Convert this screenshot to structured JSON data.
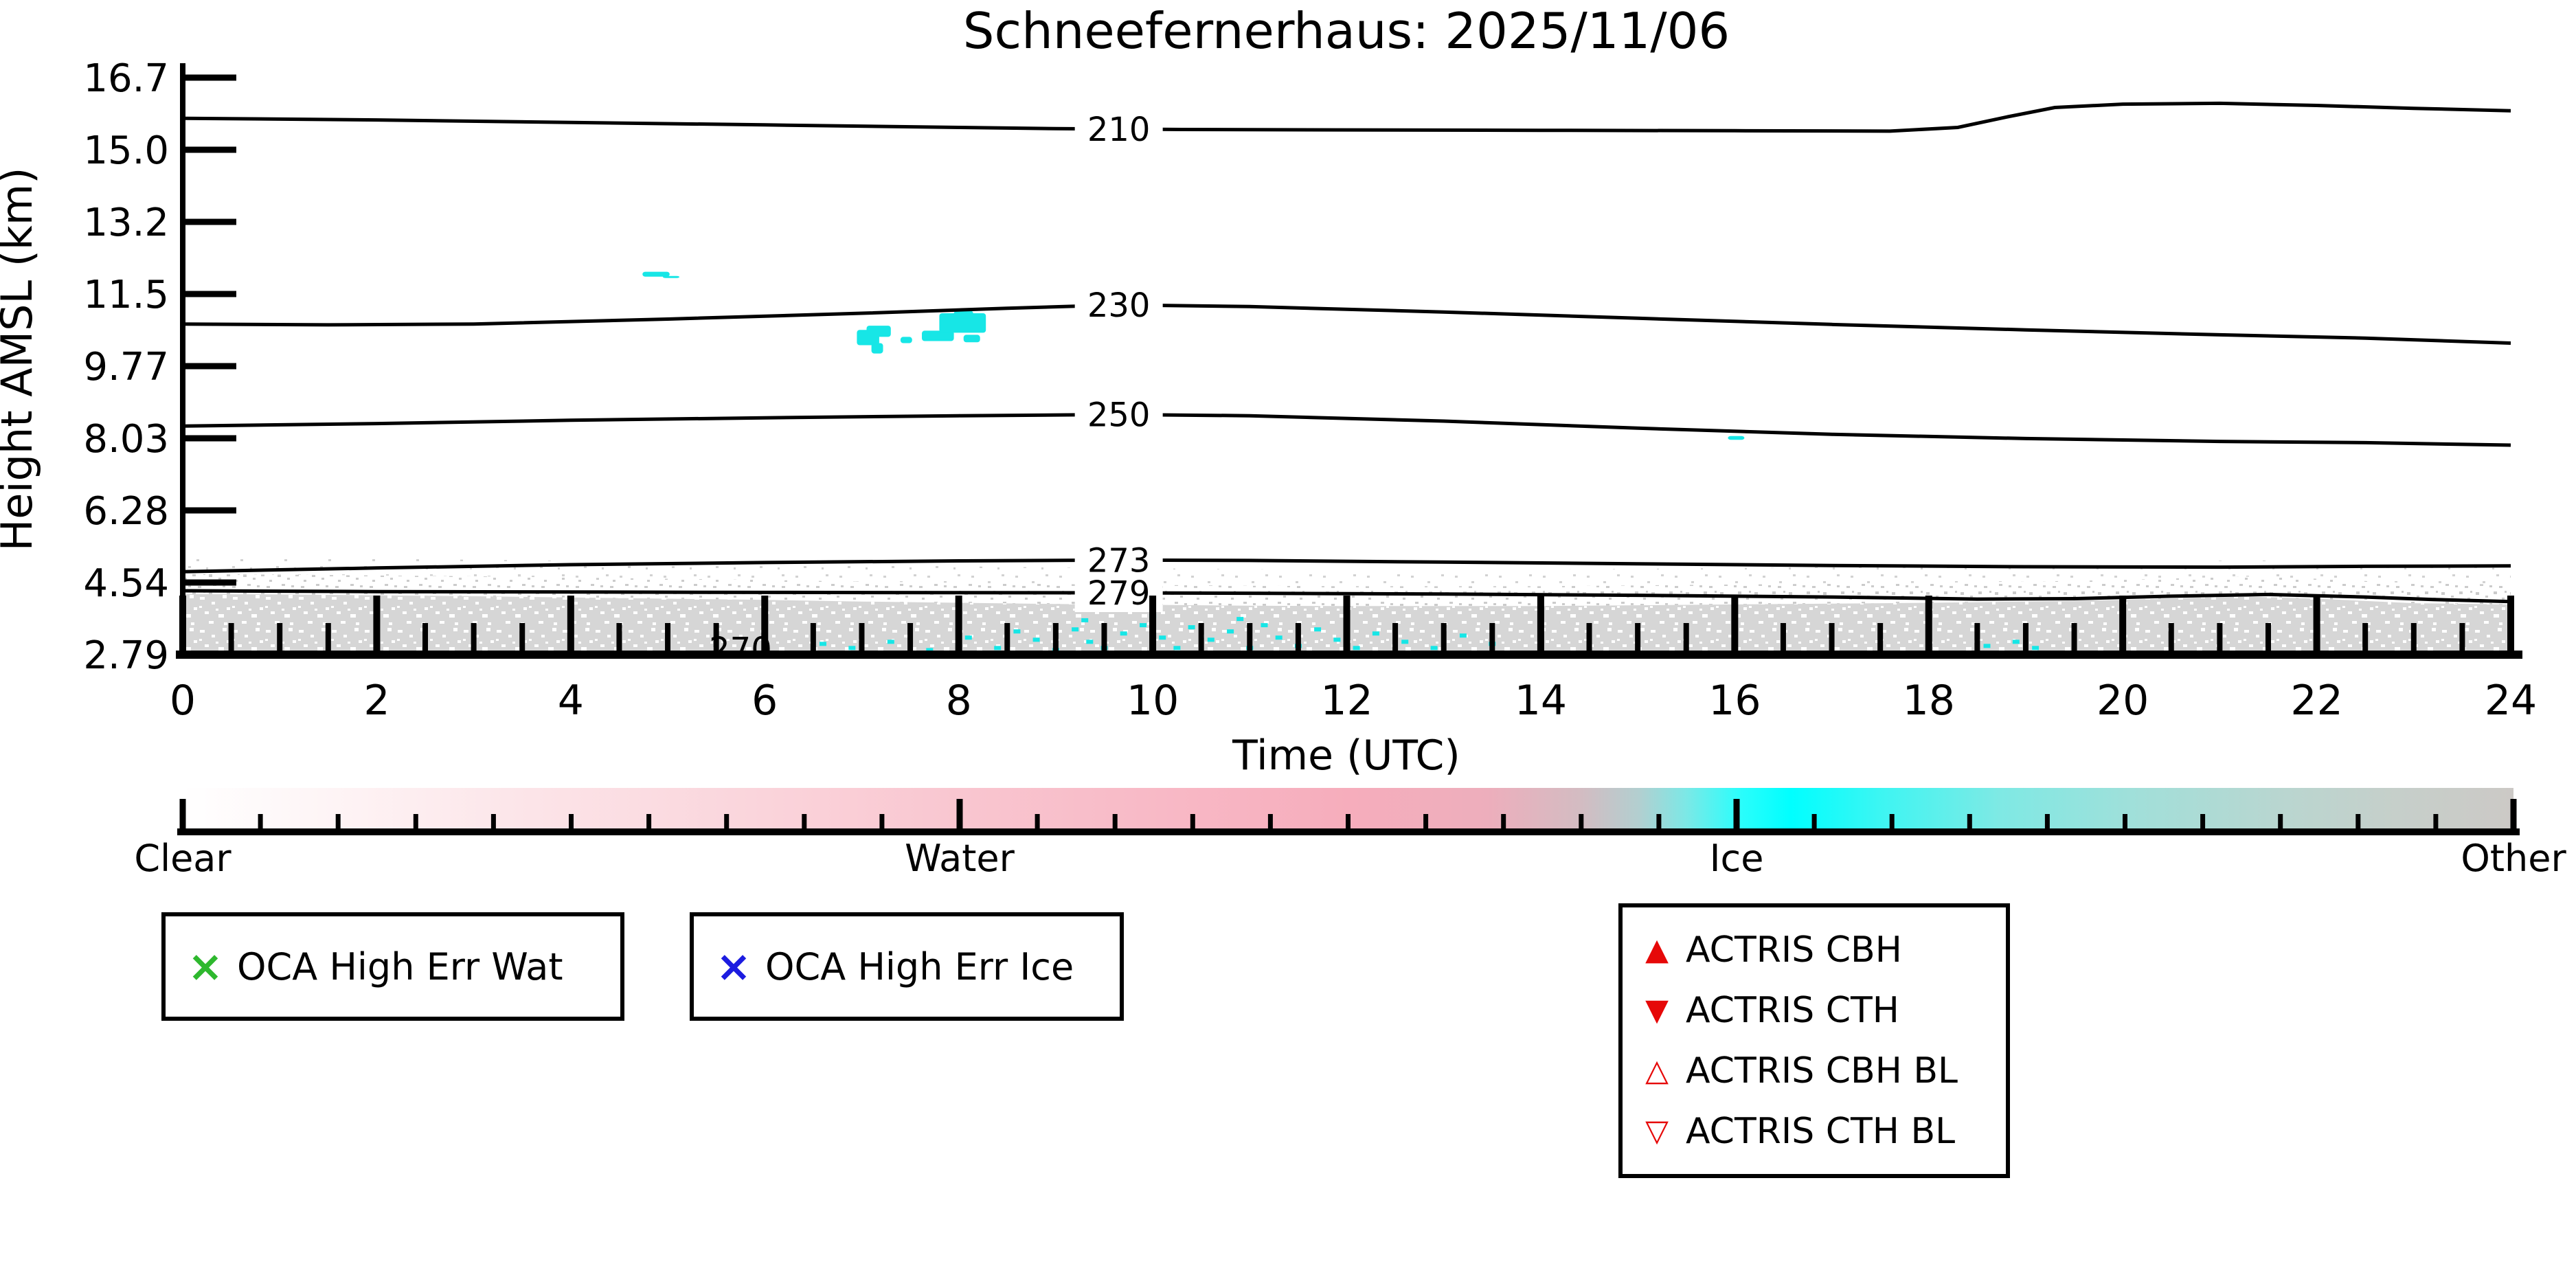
{
  "title": "Schneefernerhaus: 2025/11/06",
  "axes": {
    "xlabel": "Time (UTC)",
    "ylabel": "Height AMSL (km)",
    "x_tick_labels": [
      "0",
      "2",
      "4",
      "6",
      "8",
      "10",
      "12",
      "14",
      "16",
      "18",
      "20",
      "22",
      "24"
    ],
    "y_tick_labels": [
      "16.7",
      "15.0",
      "13.2",
      "11.5",
      "9.77",
      "8.03",
      "6.28",
      "4.54",
      "2.79"
    ]
  },
  "chart_data": {
    "type": "heatmap",
    "title": "Schneefernerhaus: 2025/11/06",
    "xlabel": "Time (UTC)",
    "ylabel": "Height AMSL (km)",
    "x_range_hours": [
      0,
      24
    ],
    "x_label_step_hours": 2,
    "x_major_tick_step_hours": 2,
    "x_minor_tick_step_hours": 0.5,
    "y_ticks_km": [
      16.7,
      15.0,
      13.2,
      11.5,
      9.77,
      8.03,
      6.28,
      4.54,
      2.79
    ],
    "y_range_km": [
      2.79,
      16.7
    ],
    "grid": false,
    "classification_classes": [
      "Clear",
      "Water",
      "Ice",
      "Other"
    ],
    "class_colors": {
      "clear": "#ffffff",
      "water": "#f6adbc",
      "ice": "#00ffff",
      "other": "#d6d6d6"
    },
    "temperature_contours_K": [
      {
        "label": "210",
        "label_t": 9.65,
        "label_km": 15.46,
        "points": [
          [
            0,
            15.72
          ],
          [
            2,
            15.68
          ],
          [
            4,
            15.62
          ],
          [
            6,
            15.56
          ],
          [
            8,
            15.5
          ],
          [
            9.0,
            15.47
          ],
          [
            10.3,
            15.45
          ],
          [
            12,
            15.44
          ],
          [
            14,
            15.43
          ],
          [
            16,
            15.42
          ],
          [
            17.6,
            15.41
          ],
          [
            18.3,
            15.5
          ],
          [
            18.8,
            15.75
          ],
          [
            19.3,
            15.98
          ],
          [
            20,
            16.06
          ],
          [
            21,
            16.08
          ],
          [
            22,
            16.03
          ],
          [
            23,
            15.96
          ],
          [
            24,
            15.9
          ]
        ]
      },
      {
        "label": "230",
        "label_t": 9.65,
        "label_km": 11.22,
        "points": [
          [
            0,
            10.76
          ],
          [
            1.5,
            10.74
          ],
          [
            3,
            10.76
          ],
          [
            5,
            10.88
          ],
          [
            7,
            11.02
          ],
          [
            8.5,
            11.14
          ],
          [
            9.65,
            11.22
          ],
          [
            11,
            11.18
          ],
          [
            13,
            11.05
          ],
          [
            15,
            10.9
          ],
          [
            17,
            10.75
          ],
          [
            19,
            10.62
          ],
          [
            21,
            10.5
          ],
          [
            22.5,
            10.42
          ],
          [
            24,
            10.3
          ]
        ]
      },
      {
        "label": "250",
        "label_t": 9.65,
        "label_km": 8.58,
        "points": [
          [
            0,
            8.3
          ],
          [
            2,
            8.36
          ],
          [
            4,
            8.44
          ],
          [
            6,
            8.5
          ],
          [
            8,
            8.55
          ],
          [
            9.65,
            8.58
          ],
          [
            11,
            8.55
          ],
          [
            13,
            8.42
          ],
          [
            15,
            8.25
          ],
          [
            17,
            8.1
          ],
          [
            19,
            8.0
          ],
          [
            21,
            7.93
          ],
          [
            22.5,
            7.9
          ],
          [
            24,
            7.84
          ]
        ]
      },
      {
        "label": "273",
        "label_t": 9.65,
        "label_km": 5.07,
        "points": [
          [
            0,
            4.79
          ],
          [
            2,
            4.88
          ],
          [
            4,
            4.96
          ],
          [
            6,
            5.01
          ],
          [
            8,
            5.05
          ],
          [
            9.65,
            5.07
          ],
          [
            11,
            5.06
          ],
          [
            13,
            5.02
          ],
          [
            15,
            4.98
          ],
          [
            17,
            4.94
          ],
          [
            19,
            4.91
          ],
          [
            21,
            4.9
          ],
          [
            22.5,
            4.92
          ],
          [
            24,
            4.93
          ]
        ]
      },
      {
        "label": "279",
        "label_t": 9.65,
        "label_km": 4.28,
        "points": [
          [
            0,
            4.33
          ],
          [
            2,
            4.31
          ],
          [
            4,
            4.3
          ],
          [
            6,
            4.29
          ],
          [
            8,
            4.285
          ],
          [
            9.65,
            4.28
          ],
          [
            11,
            4.27
          ],
          [
            13,
            4.25
          ],
          [
            15,
            4.22
          ],
          [
            17,
            4.18
          ],
          [
            18.5,
            4.13
          ],
          [
            19.5,
            4.14
          ],
          [
            20.5,
            4.2
          ],
          [
            21.5,
            4.24
          ],
          [
            22.5,
            4.18
          ],
          [
            23.2,
            4.12
          ],
          [
            24,
            4.07
          ]
        ]
      }
    ],
    "clipped_contour_label": {
      "label": "270",
      "t": 5.75
    },
    "surface_other_layer": {
      "top_profile": [
        [
          0,
          4.25
        ],
        [
          1,
          4.24
        ],
        [
          2,
          4.22
        ],
        [
          3,
          4.2
        ],
        [
          4,
          4.17
        ],
        [
          5,
          4.14
        ],
        [
          6,
          4.11
        ],
        [
          7,
          4.07
        ],
        [
          8,
          4.04
        ],
        [
          9,
          4.01
        ],
        [
          10,
          3.99
        ],
        [
          11,
          3.97
        ],
        [
          12,
          3.96
        ],
        [
          13,
          3.96
        ],
        [
          14,
          3.96
        ],
        [
          15,
          3.98
        ],
        [
          16,
          4.0
        ],
        [
          17,
          4.02
        ],
        [
          18,
          4.04
        ],
        [
          19,
          4.07
        ],
        [
          20,
          4.11
        ],
        [
          20.7,
          4.16
        ],
        [
          21.3,
          4.19
        ],
        [
          22,
          4.14
        ],
        [
          23,
          4.03
        ],
        [
          24,
          4.0
        ]
      ]
    },
    "ice_patches": [
      {
        "t": [
          4.74,
          5.02
        ],
        "km": [
          12.02,
          11.9
        ]
      },
      {
        "t": [
          4.95,
          5.12
        ],
        "km": [
          11.92,
          11.87
        ]
      },
      {
        "t": [
          6.95,
          7.18
        ],
        "km": [
          10.62,
          10.25
        ]
      },
      {
        "t": [
          7.05,
          7.3
        ],
        "km": [
          10.72,
          10.45
        ]
      },
      {
        "t": [
          7.1,
          7.22
        ],
        "km": [
          10.3,
          10.05
        ]
      },
      {
        "t": [
          7.4,
          7.52
        ],
        "km": [
          10.45,
          10.3
        ]
      },
      {
        "t": [
          7.62,
          7.95
        ],
        "km": [
          10.6,
          10.35
        ]
      },
      {
        "t": [
          7.8,
          8.28
        ],
        "km": [
          11.02,
          10.55
        ]
      },
      {
        "t": [
          8.05,
          8.22
        ],
        "km": [
          10.5,
          10.32
        ]
      },
      {
        "t": [
          7.95,
          8.15
        ],
        "km": [
          11.08,
          10.9
        ]
      },
      {
        "t": [
          15.93,
          16.1
        ],
        "km": [
          8.06,
          7.97
        ]
      }
    ],
    "ice_speckles": [
      [
        6.6,
        3.05
      ],
      [
        6.9,
        2.95
      ],
      [
        7.3,
        3.1
      ],
      [
        7.7,
        2.9
      ],
      [
        8.1,
        3.2
      ],
      [
        8.4,
        2.95
      ],
      [
        8.6,
        3.35
      ],
      [
        8.8,
        3.15
      ],
      [
        9.0,
        2.9
      ],
      [
        9.2,
        3.4
      ],
      [
        9.35,
        3.1
      ],
      [
        9.5,
        2.95
      ],
      [
        9.7,
        3.3
      ],
      [
        9.9,
        3.5
      ],
      [
        10.1,
        3.2
      ],
      [
        10.25,
        2.95
      ],
      [
        10.4,
        3.45
      ],
      [
        10.6,
        3.15
      ],
      [
        10.8,
        3.35
      ],
      [
        11.0,
        2.95
      ],
      [
        11.15,
        3.5
      ],
      [
        11.3,
        3.2
      ],
      [
        11.5,
        3.0
      ],
      [
        11.7,
        3.4
      ],
      [
        11.9,
        3.15
      ],
      [
        12.1,
        2.95
      ],
      [
        12.3,
        3.3
      ],
      [
        12.6,
        3.1
      ],
      [
        12.9,
        2.95
      ],
      [
        13.2,
        3.25
      ],
      [
        13.5,
        3.05
      ],
      [
        9.3,
        3.62
      ],
      [
        10.0,
        3.72
      ],
      [
        10.9,
        3.65
      ],
      [
        18.6,
        3.0
      ],
      [
        18.9,
        3.1
      ],
      [
        19.1,
        2.95
      ]
    ],
    "colorbar": {
      "labels": [
        "Clear",
        "Water",
        "Ice",
        "Other"
      ],
      "minor_divisions": 30,
      "gradient": [
        [
          0.0,
          "#ffffff"
        ],
        [
          0.06,
          "#fef5f6"
        ],
        [
          0.15,
          "#fce4e8"
        ],
        [
          0.25,
          "#fad4db"
        ],
        [
          0.333,
          "#f9c6d0"
        ],
        [
          0.42,
          "#f8b9c6"
        ],
        [
          0.5,
          "#f6adbc"
        ],
        [
          0.56,
          "#edaebc"
        ],
        [
          0.6,
          "#d3bcc2"
        ],
        [
          0.625,
          "#b2cfd0"
        ],
        [
          0.645,
          "#7ce8e6"
        ],
        [
          0.667,
          "#2efdfb"
        ],
        [
          0.69,
          "#00ffff"
        ],
        [
          0.73,
          "#3ff5f2"
        ],
        [
          0.78,
          "#7fe9e4"
        ],
        [
          0.84,
          "#a2dfd9"
        ],
        [
          0.9,
          "#b9d6d0"
        ],
        [
          0.95,
          "#c6cfca"
        ],
        [
          1.0,
          "#ccc9c6"
        ]
      ]
    }
  },
  "legends": {
    "oca_wat": {
      "marker": "×",
      "color": "#2eb82e",
      "label": "OCA High Err Wat"
    },
    "oca_ice": {
      "marker": "×",
      "color": "#1c1ce0",
      "label": "OCA High Err Ice"
    },
    "actris": [
      {
        "marker": "▲",
        "color": "#e60808",
        "label": "ACTRIS CBH"
      },
      {
        "marker": "▼",
        "color": "#e60808",
        "label": "ACTRIS CTH"
      },
      {
        "marker": "△",
        "color": "#e60808",
        "label": "ACTRIS CBH BL"
      },
      {
        "marker": "▽",
        "color": "#e60808",
        "label": "ACTRIS CTH BL"
      }
    ]
  }
}
